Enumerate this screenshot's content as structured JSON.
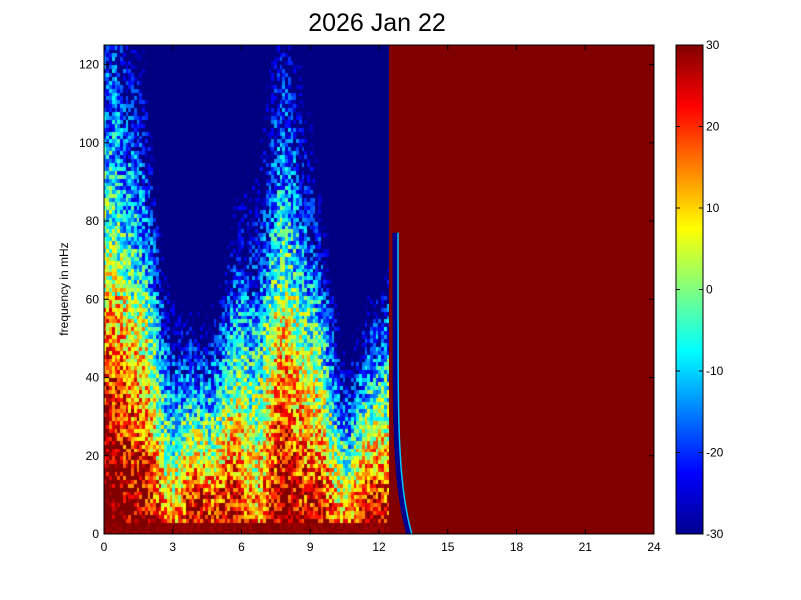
{
  "chart_data": {
    "type": "heatmap",
    "title": "2026 Jan 22",
    "xlabel": "",
    "ylabel": "frequency in mHz",
    "xlim": [
      0,
      24
    ],
    "ylim": [
      0,
      125
    ],
    "x_ticks": [
      0,
      3,
      6,
      9,
      12,
      15,
      18,
      21,
      24
    ],
    "x_tick_labels": [
      "0",
      "3",
      "6",
      "9",
      "12",
      "15",
      "18",
      "21",
      "24"
    ],
    "y_ticks": [
      0,
      20,
      40,
      60,
      80,
      100,
      120
    ],
    "y_tick_labels": [
      "0",
      "20",
      "40",
      "60",
      "80",
      "100",
      "120"
    ],
    "colorbar": {
      "range": [
        -30,
        30
      ],
      "ticks": [
        -30,
        -20,
        -10,
        0,
        10,
        20,
        30
      ],
      "tick_labels": [
        "-30",
        "-20",
        "-10",
        "0",
        "10",
        "20",
        "30"
      ],
      "colormap": "jet"
    },
    "regions": [
      {
        "x_range": [
          0,
          12.4
        ],
        "description": "noisy spectrogram data, high power at low frequency (below ~60 mHz), lower power above"
      },
      {
        "x_range": [
          12.4,
          24
        ],
        "value": 30
      }
    ],
    "grid": false
  }
}
